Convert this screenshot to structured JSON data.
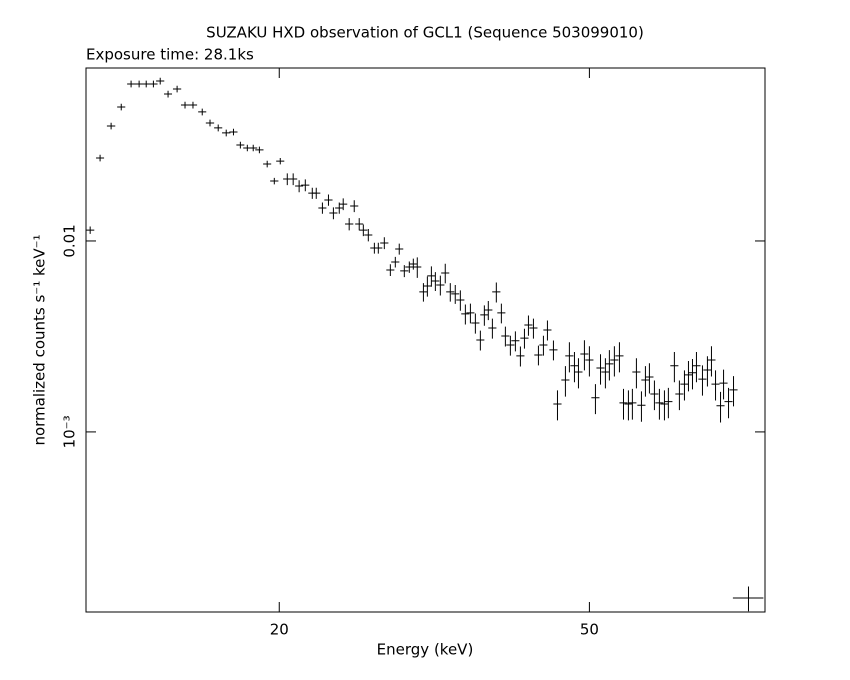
{
  "chart_data": {
    "type": "errorbar",
    "title": "SUZAKU HXD observation of GCL1 (Sequence 503099010)",
    "subtitle": "Exposure time: 28.1ks",
    "x_label": "Energy (keV)",
    "y_label": "normalized counts s⁻¹ keV⁻¹",
    "xscale": "log",
    "yscale": "log",
    "xlim": [
      11.3,
      84
    ],
    "ylim": [
      0.000114,
      0.0805
    ],
    "xticks": [
      20,
      50
    ],
    "yticks": [
      0.01,
      {
        "value": 0.001,
        "label": "10⁻³"
      }
    ],
    "color": "#000000",
    "x": [
      11.44,
      11.78,
      12.17,
      12.54,
      12.91,
      13.22,
      13.5,
      13.79,
      14.07,
      14.4,
      14.79,
      15.14,
      15.5,
      15.93,
      16.3,
      16.7,
      17.1,
      17.47,
      17.83,
      18.2,
      18.52,
      18.86,
      19.3,
      19.71,
      20.06,
      20.48,
      20.84,
      21.21,
      21.6,
      22.05,
      22.31,
      22.72,
      23.13,
      23.47,
      23.88,
      24.16,
      24.59,
      24.96,
      25.33,
      25.64,
      26.02,
      26.49,
      26.8,
      27.28,
      27.77,
      28.18,
      28.51,
      28.94,
      29.37,
      29.72,
      30.07,
      30.62,
      30.98,
      31.35,
      31.72,
      32.19,
      32.66,
      33.15,
      33.64,
      34.15,
      34.66,
      35.18,
      35.7,
      36.23,
      36.66,
      37.09,
      37.54,
      37.98,
      38.55,
      39.01,
      39.59,
      40.18,
      40.78,
      41.27,
      41.76,
      42.38,
      43.01,
      43.65,
      44.17,
      44.96,
      45.5,
      46.58,
      47.13,
      47.84,
      48.41,
      49.27,
      50.0,
      50.9,
      51.67,
      52.42,
      53.04,
      53.83,
      54.64,
      55.3,
      56.11,
      56.77,
      57.45,
      58.31,
      59.0,
      59.7,
      60.59,
      61.49,
      62.41,
      63.14,
      64.27,
      65.23,
      66.21,
      67.0,
      67.8,
      68.6,
      69.83,
      70.86,
      71.71,
      72.58,
      73.66,
      74.32,
      75.42,
      76.54,
      80.0
    ],
    "values": [
      0.0114,
      0.0272,
      0.04,
      0.0503,
      0.0664,
      0.0664,
      0.0664,
      0.0664,
      0.0688,
      0.0588,
      0.0625,
      0.0515,
      0.0515,
      0.0474,
      0.0415,
      0.0391,
      0.0368,
      0.0372,
      0.0318,
      0.0307,
      0.0307,
      0.03,
      0.0253,
      0.0206,
      0.0262,
      0.0211,
      0.0211,
      0.0194,
      0.0196,
      0.0178,
      0.0178,
      0.01489,
      0.0164,
      0.014,
      0.01489,
      0.0156,
      0.01227,
      0.01525,
      0.01227,
      0.0114,
      0.01075,
      0.00919,
      0.00919,
      0.00976,
      0.00705,
      0.00776,
      0.00908,
      0.00697,
      0.00731,
      0.00758,
      0.00731,
      0.00541,
      0.00581,
      0.00656,
      0.00617,
      0.00588,
      0.0068,
      0.00541,
      0.00528,
      0.00491,
      0.00415,
      0.0042,
      0.00372,
      0.00303,
      0.0041,
      0.00435,
      0.0035,
      0.00541,
      0.0042,
      0.00318,
      0.00285,
      0.003,
      0.0025,
      0.0031,
      0.00363,
      0.0035,
      0.00253,
      0.00285,
      0.00342,
      0.00269,
      0.0014,
      0.00187,
      0.0025,
      0.00222,
      0.00206,
      0.00256,
      0.00238,
      0.00151,
      0.00216,
      0.00206,
      0.00227,
      0.00238,
      0.0025,
      0.00142,
      0.0014,
      0.00142,
      0.00206,
      0.00138,
      0.00187,
      0.00194,
      0.00158,
      0.00142,
      0.0014,
      0.00144,
      0.00222,
      0.00158,
      0.00178,
      0.00199,
      0.00204,
      0.00222,
      0.00189,
      0.00211,
      0.00238,
      0.00178,
      0.00137,
      0.0018,
      0.00144,
      0.00166,
      0.000135
    ],
    "xerr": [
      0.14,
      0.14,
      0.15,
      0.15,
      0.15,
      0.16,
      0.16,
      0.17,
      0.17,
      0.17,
      0.18,
      0.18,
      0.19,
      0.19,
      0.2,
      0.2,
      0.21,
      0.21,
      0.21,
      0.22,
      0.22,
      0.23,
      0.23,
      0.24,
      0.24,
      0.25,
      0.25,
      0.25,
      0.26,
      0.26,
      0.27,
      0.27,
      0.28,
      0.28,
      0.29,
      0.29,
      0.3,
      0.3,
      0.3,
      0.31,
      0.31,
      0.32,
      0.32,
      0.33,
      0.33,
      0.34,
      0.34,
      0.35,
      0.35,
      0.36,
      0.36,
      0.37,
      0.37,
      0.38,
      0.38,
      0.39,
      0.39,
      0.4,
      0.4,
      0.41,
      0.42,
      0.42,
      0.43,
      0.43,
      0.44,
      0.45,
      0.45,
      0.46,
      0.46,
      0.47,
      0.48,
      0.48,
      0.49,
      0.5,
      0.5,
      0.51,
      0.52,
      0.52,
      0.53,
      0.54,
      0.55,
      0.56,
      0.57,
      0.57,
      0.58,
      0.59,
      0.6,
      0.61,
      0.62,
      0.63,
      0.64,
      0.65,
      0.66,
      0.66,
      0.67,
      0.68,
      0.69,
      0.7,
      0.71,
      0.72,
      0.73,
      0.74,
      0.75,
      0.76,
      0.77,
      0.78,
      0.79,
      0.8,
      0.81,
      0.82,
      0.84,
      0.85,
      0.86,
      0.87,
      0.88,
      0.89,
      0.9,
      0.92,
      3.6
    ],
    "yerr": [
      0.0005,
      0.0011,
      0.0016,
      0.002,
      0.0027,
      0.0027,
      0.0027,
      0.0027,
      0.0028,
      0.0024,
      0.0025,
      0.0021,
      0.0021,
      0.0019,
      0.0017,
      0.0016,
      0.0015,
      0.0015,
      0.0013,
      0.0012,
      0.0012,
      0.0012,
      0.001,
      0.0008,
      0.001,
      0.0015,
      0.0015,
      0.0014,
      0.0014,
      0.0012,
      0.0012,
      0.001,
      0.0011,
      0.001,
      0.001,
      0.0011,
      0.0009,
      0.0011,
      0.0009,
      0.0008,
      0.0008,
      0.0006,
      0.0006,
      0.0007,
      0.0005,
      0.0005,
      0.0006,
      0.0005,
      0.0005,
      0.0005,
      0.0009,
      0.0006,
      0.0007,
      0.0008,
      0.0007,
      0.0007,
      0.0008,
      0.0006,
      0.0006,
      0.0006,
      0.0005,
      0.0005,
      0.00045,
      0.00036,
      0.0005,
      0.0005,
      0.00042,
      0.00065,
      0.0005,
      0.00038,
      0.00034,
      0.00036,
      0.0003,
      0.00037,
      0.00044,
      0.00042,
      0.0003,
      0.00034,
      0.00041,
      0.00032,
      0.00025,
      0.00034,
      0.00045,
      0.0004,
      0.00037,
      0.00046,
      0.00043,
      0.00027,
      0.00039,
      0.00037,
      0.00041,
      0.00043,
      0.00045,
      0.00026,
      0.00025,
      0.00026,
      0.00037,
      0.00025,
      0.00034,
      0.00035,
      0.00028,
      0.00026,
      0.00025,
      0.00026,
      0.0004,
      0.00028,
      0.00032,
      0.00036,
      0.00037,
      0.0004,
      0.00034,
      0.00038,
      0.00043,
      0.00032,
      0.00025,
      0.00032,
      0.00026,
      0.0003,
      2e-05
    ]
  }
}
